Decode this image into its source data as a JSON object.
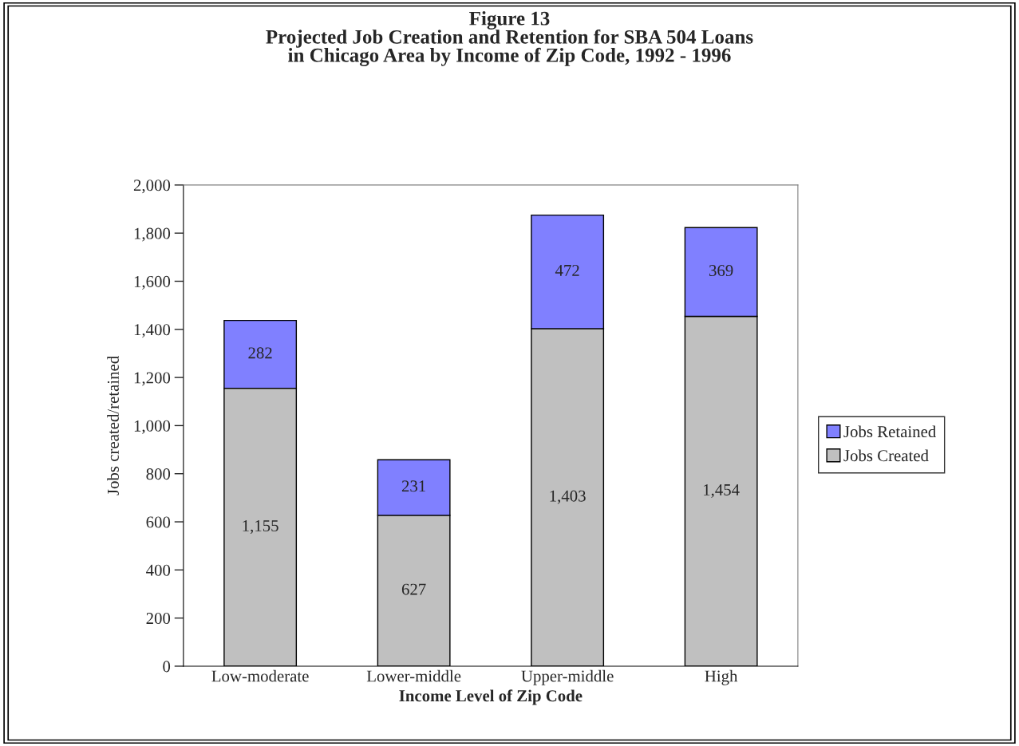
{
  "chart_data": {
    "type": "bar",
    "title": "Figure 13\nProjected Job Creation and Retention for SBA 504 Loans\nin Chicago Area by Income of Zip Code, 1992 - 1996",
    "xlabel": "Income Level of Zip Code",
    "ylabel": "Jobs created/retained",
    "categories": [
      "Low-moderate",
      "Lower-middle",
      "Upper-middle",
      "High"
    ],
    "stacked": true,
    "legend": "right",
    "grid": false,
    "series": [
      {
        "name": "Jobs Created",
        "color": "#c0c0c0",
        "values": [
          1155,
          627,
          1403,
          1454
        ],
        "value_labels": [
          "1,155",
          "627",
          "1,403",
          "1,454"
        ]
      },
      {
        "name": "Jobs Retained",
        "color": "#8080ff",
        "values": [
          282,
          231,
          472,
          369
        ],
        "value_labels": [
          "282",
          "231",
          "472",
          "369"
        ]
      }
    ],
    "ylim": [
      0,
      2000
    ],
    "yticks": [
      0,
      200,
      400,
      600,
      800,
      {
        "value": 1000,
        "label": "1,000"
      },
      {
        "value": 1200,
        "label": "1,200"
      },
      {
        "value": 1400,
        "label": "1,400"
      },
      {
        "value": 1600,
        "label": "1,600"
      },
      {
        "value": 1800,
        "label": "1,800"
      },
      {
        "value": 2000,
        "label": "2,000"
      }
    ]
  }
}
